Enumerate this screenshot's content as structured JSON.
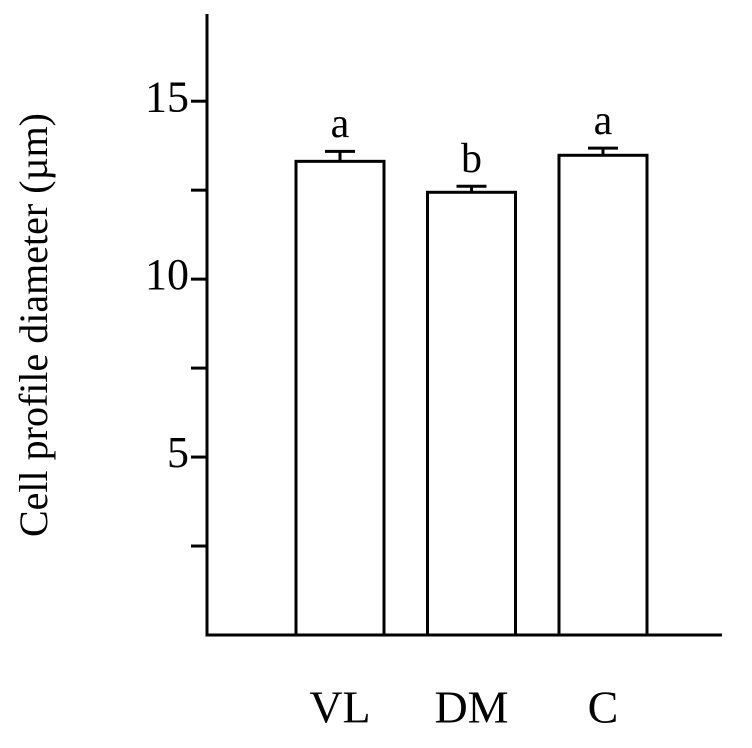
{
  "chart_data": {
    "type": "bar",
    "y_label": "Cell profile diameter (µm)",
    "categories": [
      "VL",
      "DM",
      "C"
    ],
    "values": [
      13.31,
      12.44,
      13.48
    ],
    "errors": [
      0.28,
      0.17,
      0.2
    ],
    "significance": [
      "a",
      "b",
      "a"
    ],
    "color": "#ffffff",
    "ylim": [
      0,
      17.45
    ],
    "yticks": [
      5,
      10,
      15
    ],
    "minor_yticks": [
      2.5,
      7.5,
      12.5
    ]
  }
}
